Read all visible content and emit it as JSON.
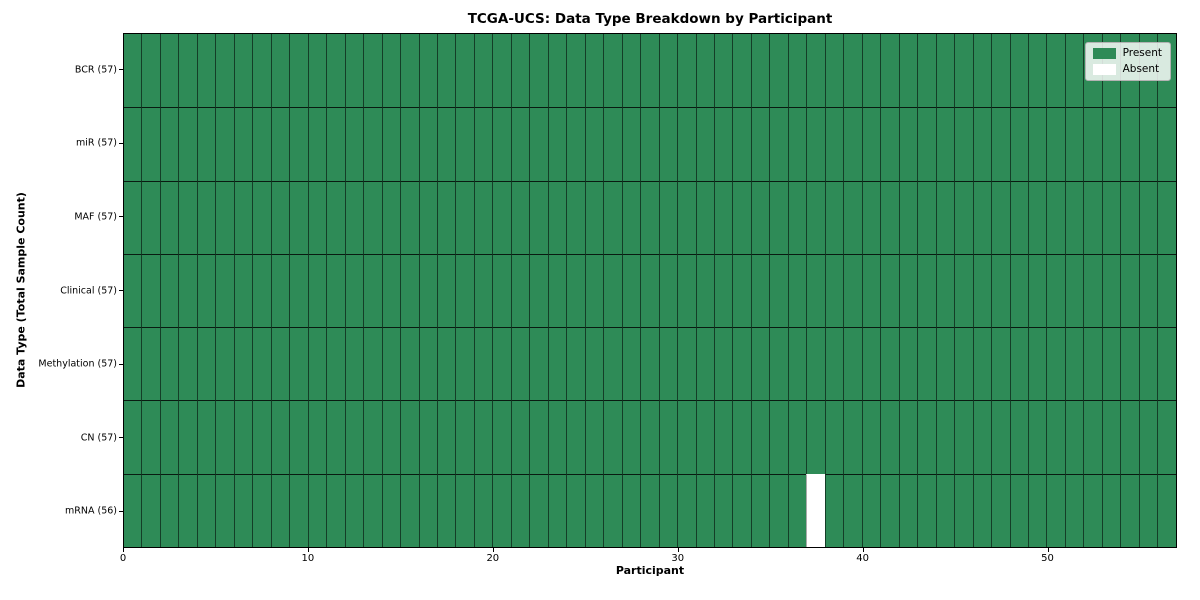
{
  "chart_data": {
    "type": "heatmap",
    "title": "TCGA-UCS: Data Type Breakdown by Participant",
    "xlabel": "Participant",
    "ylabel": "Data Type (Total Sample Count)",
    "x_range": [
      0,
      57
    ],
    "n_participants": 57,
    "x_ticks": [
      0,
      10,
      20,
      30,
      40,
      50
    ],
    "rows": [
      {
        "label": "BCR (57)",
        "data_type": "BCR",
        "total": 57,
        "absent_participants": []
      },
      {
        "label": "miR (57)",
        "data_type": "miR",
        "total": 57,
        "absent_participants": []
      },
      {
        "label": "MAF (57)",
        "data_type": "MAF",
        "total": 57,
        "absent_participants": []
      },
      {
        "label": "Clinical (57)",
        "data_type": "Clinical",
        "total": 57,
        "absent_participants": []
      },
      {
        "label": "Methylation (57)",
        "data_type": "Methylation",
        "total": 57,
        "absent_participants": []
      },
      {
        "label": "CN (57)",
        "data_type": "CN",
        "total": 57,
        "absent_participants": []
      },
      {
        "label": "mRNA (56)",
        "data_type": "mRNA",
        "total": 56,
        "absent_participants": [
          37
        ]
      }
    ],
    "legend": {
      "position": "upper right",
      "entries": [
        {
          "label": "Present",
          "color": "#2e8b57"
        },
        {
          "label": "Absent",
          "color": "#ffffff"
        }
      ]
    },
    "colors": {
      "present": "#2e8b57",
      "absent": "#ffffff"
    },
    "grid": true
  }
}
